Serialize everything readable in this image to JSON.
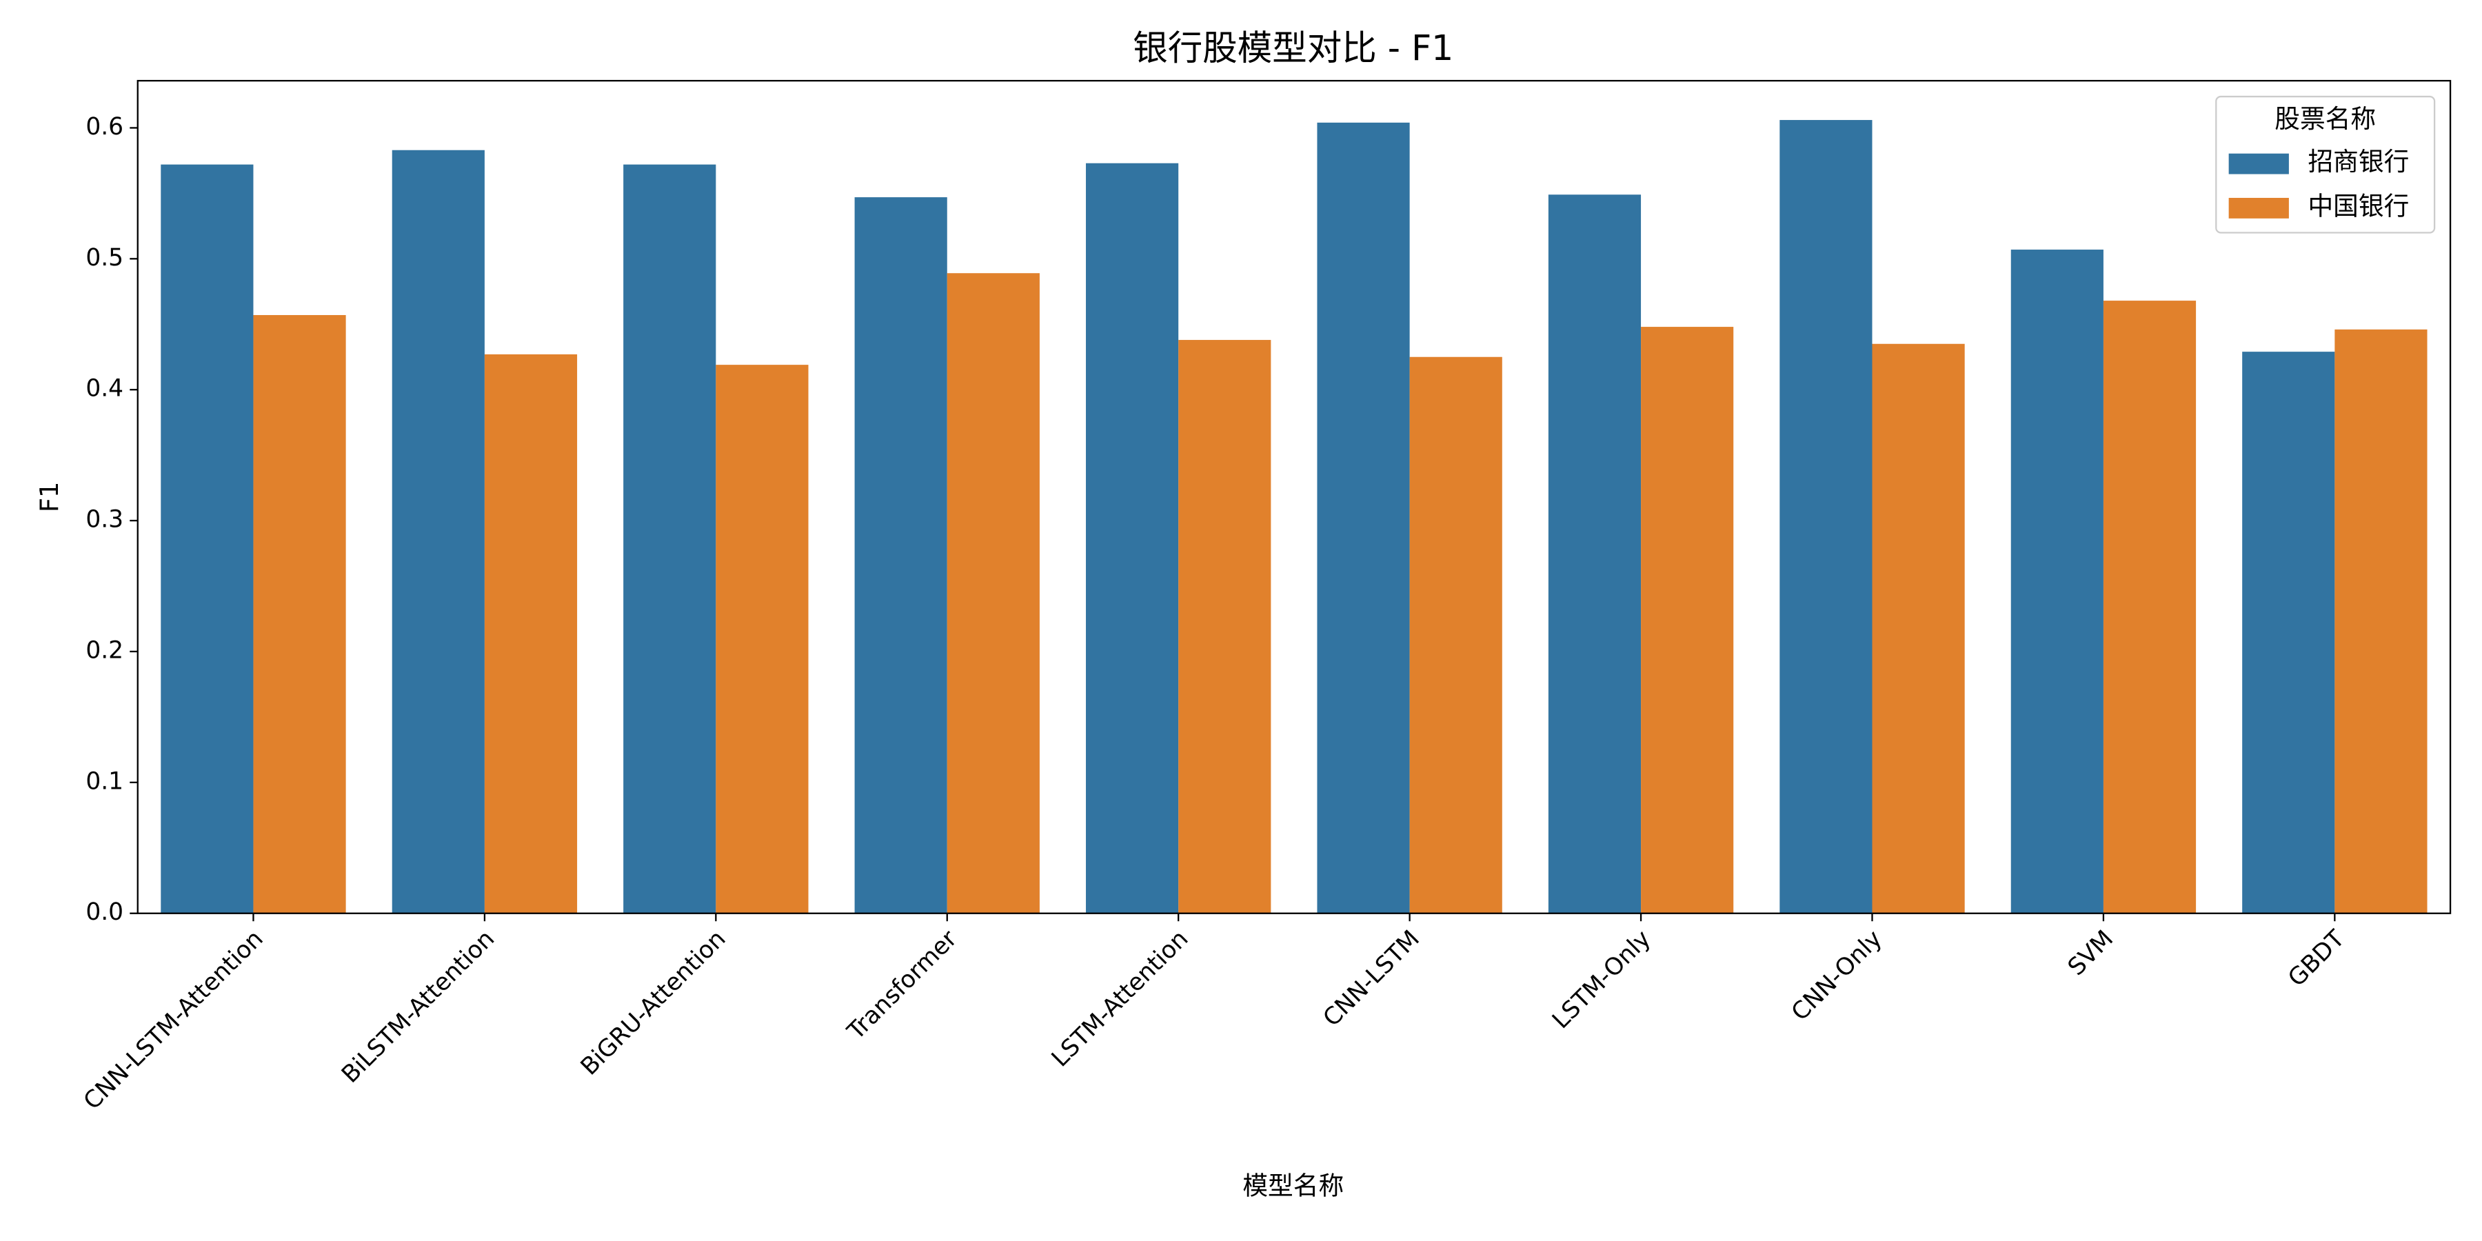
{
  "chart_data": {
    "type": "bar",
    "title": "银行股模型对比 - F1",
    "x_label": "模型名称",
    "y_label": "F1",
    "categories": [
      "CNN-LSTM-Attention",
      "BiLSTM-Attention",
      "BiGRU-Attention",
      "Transformer",
      "LSTM-Attention",
      "CNN-LSTM",
      "LSTM-Only",
      "CNN-Only",
      "SVM",
      "GBDT"
    ],
    "series": [
      {
        "name": "招商银行",
        "color": "#3274a1",
        "values": [
          0.572,
          0.583,
          0.572,
          0.547,
          0.573,
          0.604,
          0.549,
          0.606,
          0.507,
          0.429
        ]
      },
      {
        "name": "中国银行",
        "color": "#e1812c",
        "values": [
          0.457,
          0.427,
          0.419,
          0.489,
          0.438,
          0.425,
          0.448,
          0.435,
          0.468,
          0.446
        ]
      }
    ],
    "legend_title": "股票名称",
    "legend_position": "upper right",
    "ylim": [
      0,
      0.636
    ],
    "yticks": [
      {
        "value": 0,
        "label": "0.0"
      },
      0.1,
      0.2,
      0.3,
      0.4,
      0.5,
      0.6
    ],
    "grid": false
  }
}
